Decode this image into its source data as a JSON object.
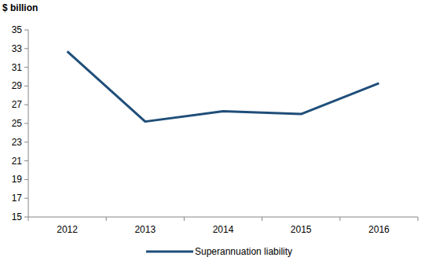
{
  "chart_data": {
    "type": "line",
    "ylabel": "$ billion",
    "categories": [
      "2012",
      "2013",
      "2014",
      "2015",
      "2016"
    ],
    "series": [
      {
        "name": "Superannuation liability",
        "color": "#1f4e79",
        "values": [
          32.7,
          25.2,
          26.3,
          26.0,
          29.3
        ]
      }
    ],
    "ylim": [
      15,
      35
    ],
    "yticks": [
      15,
      17,
      19,
      21,
      23,
      25,
      27,
      29,
      31,
      33,
      35
    ],
    "grid": false,
    "legend": "bottom"
  }
}
